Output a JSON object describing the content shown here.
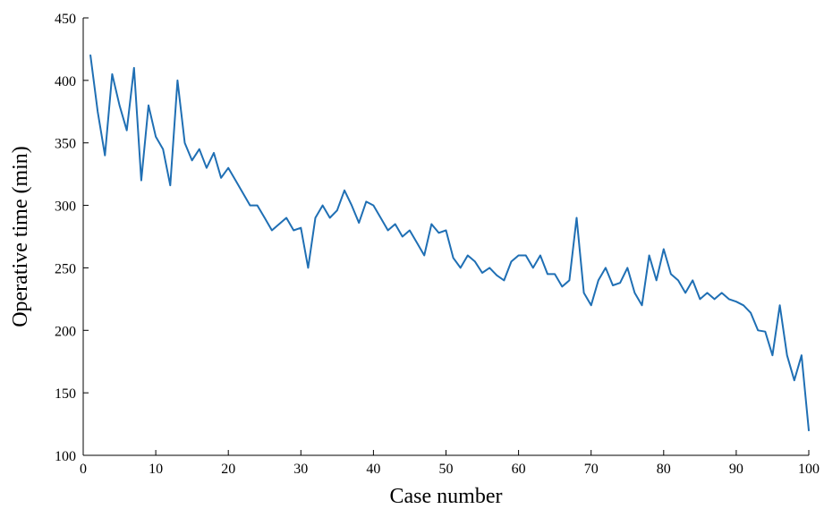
{
  "chart_data": {
    "type": "line",
    "title": "",
    "xlabel": "Case number",
    "ylabel": "Operative time (min)",
    "xlim": [
      0,
      100
    ],
    "ylim": [
      100,
      450
    ],
    "xticks": [
      0,
      10,
      20,
      30,
      40,
      50,
      60,
      70,
      80,
      90,
      100
    ],
    "yticks": [
      100,
      150,
      200,
      250,
      300,
      350,
      400,
      450
    ],
    "grid": false,
    "line_color": "#1f6fb4",
    "series": [
      {
        "x": [
          1,
          2,
          3,
          4,
          5,
          6,
          7,
          8,
          9,
          10,
          11,
          12,
          13,
          14,
          15,
          16,
          17,
          18,
          19,
          20,
          21,
          22,
          23,
          24,
          25,
          26,
          27,
          28,
          29,
          30,
          31,
          32,
          33,
          34,
          35,
          36,
          37,
          38,
          39,
          40,
          41,
          42,
          43,
          44,
          45,
          46,
          47,
          48,
          49,
          50,
          51,
          52,
          53,
          54,
          55,
          56,
          57,
          58,
          59,
          60,
          61,
          62,
          63,
          64,
          65,
          66,
          67,
          68,
          69,
          70,
          71,
          72,
          73,
          74,
          75,
          76,
          77,
          78,
          79,
          80,
          81,
          82,
          83,
          84,
          85,
          86,
          87,
          88,
          89,
          90,
          91,
          92,
          93,
          94,
          95,
          96,
          97,
          98,
          99,
          100
        ],
        "values": [
          420,
          375,
          340,
          405,
          380,
          360,
          410,
          320,
          380,
          355,
          345,
          316,
          400,
          350,
          336,
          345,
          330,
          342,
          322,
          330,
          320,
          310,
          300,
          300,
          290,
          280,
          285,
          290,
          280,
          282,
          250,
          290,
          300,
          290,
          296,
          312,
          300,
          286,
          303,
          300,
          290,
          280,
          285,
          275,
          280,
          270,
          260,
          285,
          278,
          280,
          258,
          250,
          260,
          255,
          246,
          250,
          244,
          240,
          255,
          260,
          260,
          250,
          260,
          245,
          245,
          235,
          240,
          290,
          230,
          220,
          240,
          250,
          236,
          238,
          250,
          230,
          220,
          260,
          240,
          265,
          245,
          240,
          230,
          240,
          225,
          230,
          225,
          230,
          225,
          223,
          220,
          214,
          200,
          199,
          180,
          220,
          180,
          160,
          180,
          120
        ]
      }
    ]
  }
}
